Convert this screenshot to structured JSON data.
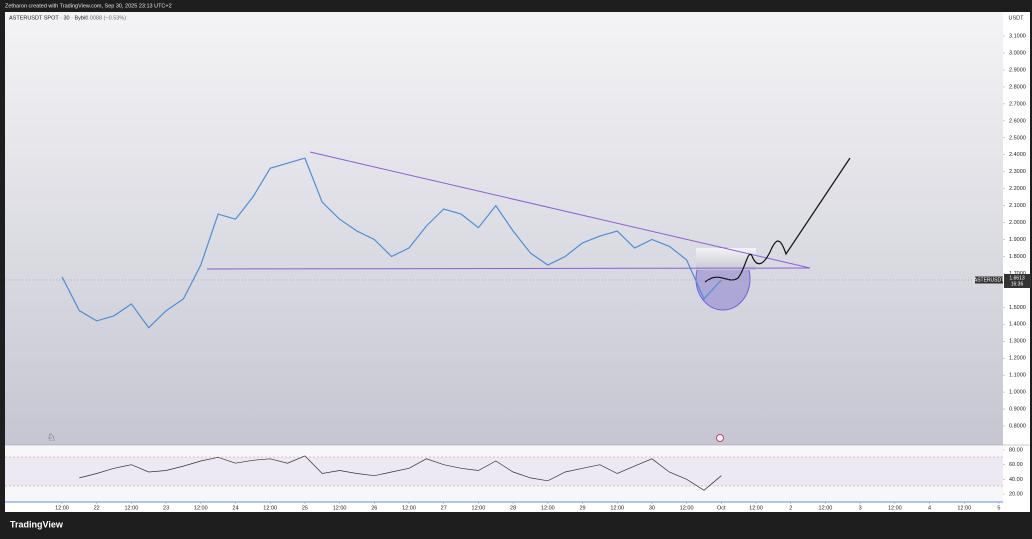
{
  "header": {
    "text": "Zetharon created with TradingView.com, Sep 30, 2025 23:13 UTC+2"
  },
  "chart_data": [
    {
      "type": "line",
      "title": "ASTERUSDT SPOT · 30 · Bybit",
      "change": "−0.0088 (−0.53%)",
      "y_axis_label": "USDT",
      "xlim": [
        -7.7,
        337.4
      ],
      "xticks": [
        {
          "value": 12,
          "label": "12:00"
        },
        {
          "value": 24,
          "label": "22"
        },
        {
          "value": 36,
          "label": "12:00"
        },
        {
          "value": 48,
          "label": "23"
        },
        {
          "value": 60,
          "label": "12:00"
        },
        {
          "value": 72,
          "label": "24"
        },
        {
          "value": 84,
          "label": "12:00"
        },
        {
          "value": 96,
          "label": "25"
        },
        {
          "value": 108,
          "label": "12:00"
        },
        {
          "value": 120,
          "label": "26"
        },
        {
          "value": 132,
          "label": "12:00"
        },
        {
          "value": 144,
          "label": "27"
        },
        {
          "value": 156,
          "label": "12:00"
        },
        {
          "value": 168,
          "label": "28"
        },
        {
          "value": 180,
          "label": "12:00"
        },
        {
          "value": 192,
          "label": "29"
        },
        {
          "value": 204,
          "label": "12:00"
        },
        {
          "value": 216,
          "label": "30"
        },
        {
          "value": 228,
          "label": "12:00"
        },
        {
          "value": 240,
          "label": "Oct"
        },
        {
          "value": 252,
          "label": "12:00"
        },
        {
          "value": 264,
          "label": "2"
        },
        {
          "value": 276,
          "label": "12:00"
        },
        {
          "value": 288,
          "label": "3"
        },
        {
          "value": 300,
          "label": "12:00"
        },
        {
          "value": 312,
          "label": "4"
        },
        {
          "value": 324,
          "label": "12:00"
        },
        {
          "value": 336,
          "label": "5"
        }
      ],
      "ylim": [
        0.688,
        3.242
      ],
      "yticks": [
        {
          "value": 3.1,
          "label": "3.1000"
        },
        {
          "value": 3.0,
          "label": "3.0000"
        },
        {
          "value": 2.9,
          "label": "2.9000"
        },
        {
          "value": 2.8,
          "label": "2.8000"
        },
        {
          "value": 2.7,
          "label": "2.7000"
        },
        {
          "value": 2.6,
          "label": "2.6000"
        },
        {
          "value": 2.5,
          "label": "2.5000"
        },
        {
          "value": 2.4,
          "label": "2.4000"
        },
        {
          "value": 2.3,
          "label": "2.3000"
        },
        {
          "value": 2.2,
          "label": "2.2000"
        },
        {
          "value": 2.1,
          "label": "2.1000"
        },
        {
          "value": 2.0,
          "label": "2.0000"
        },
        {
          "value": 1.9,
          "label": "1.9000"
        },
        {
          "value": 1.8,
          "label": "1.8000"
        },
        {
          "value": 1.7,
          "label": "1.7000"
        },
        {
          "value": 1.5,
          "label": "1.5000"
        },
        {
          "value": 1.4,
          "label": "1.4000"
        },
        {
          "value": 1.3,
          "label": "1.3000"
        },
        {
          "value": 1.2,
          "label": "1.2000"
        },
        {
          "value": 1.1,
          "label": "1.1000"
        },
        {
          "value": 1.0,
          "label": "1.0000"
        },
        {
          "value": 0.9,
          "label": "0.9000"
        },
        {
          "value": 0.8,
          "label": "0.8000"
        }
      ],
      "x": [
        12,
        18,
        24,
        30,
        36,
        42,
        48,
        54,
        60,
        66,
        72,
        78,
        84,
        90,
        96,
        102,
        108,
        114,
        120,
        126,
        132,
        138,
        144,
        150,
        156,
        162,
        168,
        174,
        180,
        186,
        192,
        198,
        204,
        210,
        216,
        222,
        228,
        234,
        240
      ],
      "series": [
        {
          "name": "ASTERUSDT",
          "color": "#4a90d9",
          "values": [
            1.68,
            1.48,
            1.42,
            1.45,
            1.52,
            1.38,
            1.48,
            1.55,
            1.75,
            2.05,
            2.02,
            2.15,
            2.32,
            2.35,
            2.38,
            2.12,
            2.02,
            1.95,
            1.9,
            1.8,
            1.85,
            1.98,
            2.08,
            2.05,
            1.97,
            2.1,
            1.95,
            1.82,
            1.75,
            1.8,
            1.88,
            1.92,
            1.95,
            1.85,
            1.9,
            1.86,
            1.78,
            1.55,
            1.6613
          ]
        }
      ],
      "last_price": {
        "value": 1.6613,
        "label": "1.6613"
      },
      "countdown": "16:36"
    },
    {
      "type": "line",
      "ylim": [
        9.1,
        86.8
      ],
      "yticks": [
        {
          "value": 80,
          "label": "80.00"
        },
        {
          "value": 60,
          "label": "60.00"
        },
        {
          "value": 40,
          "label": "40.00"
        },
        {
          "value": 20,
          "label": "20.00"
        }
      ],
      "x": [
        12,
        18,
        24,
        30,
        36,
        42,
        48,
        54,
        60,
        66,
        72,
        78,
        84,
        90,
        96,
        102,
        108,
        114,
        120,
        126,
        132,
        138,
        144,
        150,
        156,
        162,
        168,
        174,
        180,
        186,
        192,
        198,
        204,
        210,
        216,
        222,
        228,
        234,
        240
      ],
      "series": [
        {
          "color": "#333333",
          "values": [
            null,
            42,
            48,
            55,
            60,
            50,
            52,
            58,
            65,
            70,
            62,
            66,
            68,
            62,
            72,
            48,
            52,
            48,
            45,
            50,
            55,
            68,
            60,
            55,
            52,
            65,
            50,
            42,
            38,
            50,
            55,
            60,
            48,
            58,
            68,
            50,
            40,
            25,
            45
          ]
        }
      ]
    }
  ],
  "footer": {
    "brand": "TradingView"
  }
}
